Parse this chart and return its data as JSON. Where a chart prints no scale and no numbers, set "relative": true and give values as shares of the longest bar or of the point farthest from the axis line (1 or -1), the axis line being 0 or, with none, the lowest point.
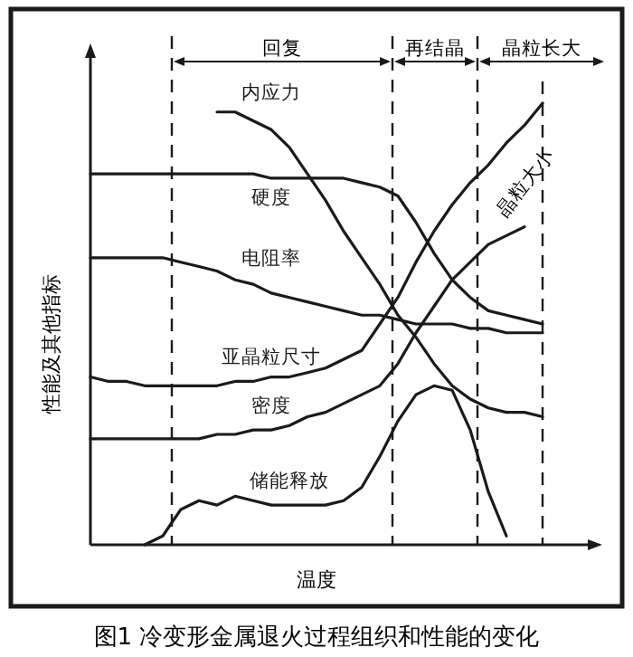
{
  "chart_data": {
    "type": "line",
    "relative": true,
    "xlabel": "温度",
    "ylabel": "性能及其他指标",
    "categories": [
      null,
      null,
      null,
      null,
      null,
      null,
      null,
      null,
      null,
      null,
      null,
      null,
      null,
      null,
      null,
      null,
      null,
      null,
      null,
      null,
      null,
      null,
      null,
      null,
      null,
      null,
      null,
      null,
      null
    ],
    "series": [
      {
        "name": "内应力",
        "color": "#1a1a1a",
        "values": [
          null,
          null,
          null,
          null,
          null,
          null,
          null,
          0.98,
          0.98,
          0.96,
          0.94,
          0.9,
          0.84,
          0.78,
          0.71,
          0.65,
          0.59,
          0.52,
          0.47,
          0.41,
          0.36,
          0.33,
          0.31,
          0.3,
          0.3,
          0.29,
          null,
          null,
          null
        ]
      },
      {
        "name": "硬度",
        "color": "#1a1a1a",
        "values": [
          0.84,
          0.84,
          0.84,
          0.84,
          0.84,
          0.84,
          0.84,
          0.84,
          0.84,
          0.84,
          0.83,
          0.83,
          0.83,
          0.83,
          0.83,
          0.82,
          0.81,
          0.79,
          0.73,
          0.66,
          0.6,
          0.56,
          0.53,
          0.52,
          0.51,
          0.5,
          null,
          null,
          null
        ]
      },
      {
        "name": "电阻率",
        "color": "#1a1a1a",
        "values": [
          0.65,
          0.65,
          0.65,
          0.65,
          0.65,
          0.64,
          0.63,
          0.62,
          0.6,
          0.59,
          0.57,
          0.56,
          0.55,
          0.54,
          0.53,
          0.52,
          0.52,
          0.51,
          0.5,
          0.5,
          0.5,
          0.49,
          0.49,
          0.48,
          0.48,
          0.48,
          null,
          null,
          null
        ]
      },
      {
        "name": "亚晶粒尺寸",
        "color": "#1a1a1a",
        "values": [
          0.38,
          0.37,
          0.37,
          0.36,
          0.36,
          0.36,
          0.36,
          0.36,
          0.37,
          0.37,
          0.38,
          0.38,
          0.39,
          0.4,
          0.42,
          0.44,
          0.5,
          0.56,
          0.64,
          0.71,
          0.77,
          0.82,
          0.86,
          0.91,
          0.95,
          1,
          null,
          null,
          null
        ]
      },
      {
        "name": "密度",
        "color": "#1a1a1a",
        "values": [
          0.24,
          0.24,
          0.24,
          0.24,
          0.24,
          0.24,
          0.24,
          0.25,
          0.25,
          0.26,
          0.26,
          0.27,
          0.29,
          0.3,
          0.32,
          0.34,
          0.36,
          0.41,
          0.48,
          0.54,
          0.6,
          0.64,
          0.68,
          0.7,
          0.72,
          null,
          null,
          null,
          null
        ]
      },
      {
        "name": "储能释放",
        "color": "#1a1a1a",
        "values": [
          null,
          null,
          null,
          0,
          0.02,
          0.08,
          0.1,
          0.09,
          0.11,
          0.1,
          0.09,
          0.09,
          0.09,
          0.09,
          0.1,
          0.13,
          0.2,
          0.28,
          0.34,
          0.36,
          0.35,
          0.26,
          0.12,
          0.02,
          null,
          null,
          null,
          null,
          null
        ]
      }
    ],
    "annotations": [
      "回复",
      "再结晶",
      "晶粒长大",
      "晶粒大小",
      "图1 冷变形金属退火过程组织和性能的变化"
    ],
    "marker": "none",
    "line_style": "solid",
    "legend": false,
    "grid": false
  }
}
